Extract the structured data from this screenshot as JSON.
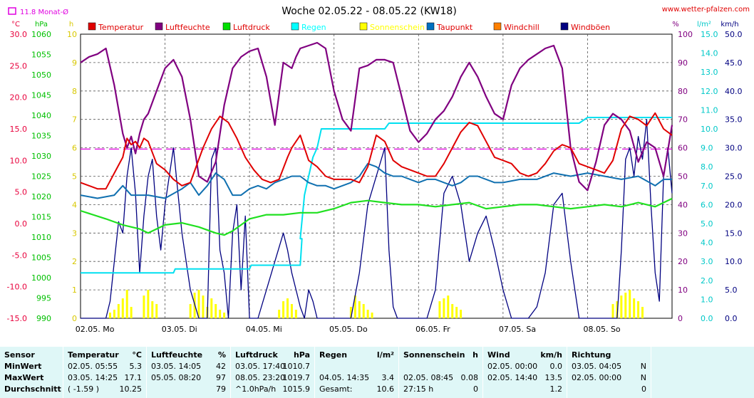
{
  "chart_data": {
    "type": "line",
    "title": "Woche 02.05.22 - 08.05.22 (KW18)",
    "source_text": "www.wetter-pfalzen.com",
    "average_note": "11.8 Monat-Ø",
    "x_tick_labels": [
      "02.05. Mo",
      "03.05. Di",
      "04.05. Mi",
      "05.05. Do",
      "06.05. Fr",
      "07.05. Sa",
      "08.05. So"
    ],
    "x_range_days": [
      0,
      7
    ],
    "axes": {
      "temperature": {
        "unit": "°C",
        "color": "#e8003c",
        "min": -15,
        "max": 30,
        "ticks": [
          "30.0",
          "25.0",
          "20.0",
          "15.0",
          "10.0",
          "5.0",
          "0.0",
          "-5.0",
          "-10.0",
          "-15.0"
        ]
      },
      "pressure": {
        "unit": "hPa",
        "color": "#00c000",
        "min": 990,
        "max": 1060,
        "ticks": [
          "1060",
          "1055",
          "1050",
          "1045",
          "1040",
          "1035",
          "1030",
          "1025",
          "1020",
          "1015",
          "1010",
          "1005",
          "1000",
          "995",
          "990"
        ]
      },
      "sunshine": {
        "unit": "h",
        "color": "#d8c800",
        "min": 0,
        "max": 10,
        "ticks": [
          "10",
          "9",
          "8",
          "7",
          "6",
          "5",
          "4",
          "3",
          "2",
          "1",
          "0"
        ]
      },
      "humidity": {
        "unit": "%",
        "color": "#800080",
        "min": 0,
        "max": 100,
        "ticks": [
          "100",
          "90",
          "80",
          "70",
          "60",
          "50",
          "40",
          "30",
          "20",
          "10",
          "0"
        ]
      },
      "rain": {
        "unit": "l/m²",
        "color": "#00c8c8",
        "min": 0,
        "max": 15,
        "ticks": [
          "15.0",
          "14.0",
          "13.0",
          "12.0",
          "11.0",
          "10.0",
          "9.0",
          "8.0",
          "7.0",
          "6.0",
          "5.0",
          "4.0",
          "3.0",
          "2.0",
          "1.0",
          "0.0"
        ]
      },
      "wind": {
        "unit": "km/h",
        "color": "#000080",
        "min": 0,
        "max": 50,
        "ticks": [
          "50.0",
          "45.0",
          "40.0",
          "35.0",
          "30.0",
          "25.0",
          "20.0",
          "15.0",
          "10.0",
          "5.0",
          "0.0"
        ]
      }
    },
    "legend": [
      {
        "name": "Temperatur",
        "color": "#e00000"
      },
      {
        "name": "Luftfeuchte",
        "color": "#800080"
      },
      {
        "name": "Luftdruck",
        "color": "#00e000"
      },
      {
        "name": "Regen",
        "color": "#00ffff"
      },
      {
        "name": "Sonnenschein",
        "color": "#ffff00"
      },
      {
        "name": "Taupunkt",
        "color": "#0070c0"
      },
      {
        "name": "Windchill",
        "color": "#ff8000"
      },
      {
        "name": "Windböen",
        "color": "#000080"
      }
    ],
    "monthly_average_temperature": 11.8,
    "series": {
      "temperature": {
        "x": [
          0,
          0.1,
          0.2,
          0.3,
          0.4,
          0.5,
          0.55,
          0.6,
          0.65,
          0.7,
          0.75,
          0.8,
          0.9,
          1.0,
          1.1,
          1.2,
          1.3,
          1.45,
          1.55,
          1.65,
          1.75,
          1.85,
          1.95,
          2.05,
          2.15,
          2.25,
          2.35,
          2.45,
          2.5,
          2.6,
          2.7,
          2.8,
          2.9,
          3.0,
          3.1,
          3.2,
          3.3,
          3.4,
          3.5,
          3.6,
          3.7,
          3.8,
          3.9,
          4.0,
          4.1,
          4.2,
          4.3,
          4.4,
          4.5,
          4.6,
          4.7,
          4.8,
          4.9,
          5.0,
          5.1,
          5.2,
          5.3,
          5.4,
          5.5,
          5.6,
          5.7,
          5.8,
          5.9,
          6.0,
          6.1,
          6.2,
          6.3,
          6.4,
          6.5,
          6.6,
          6.7,
          6.8,
          6.9,
          7.0
        ],
        "y": [
          6.5,
          6.0,
          5.5,
          5.5,
          8.0,
          10.5,
          13.5,
          12.5,
          13.0,
          12.0,
          13.5,
          13.0,
          9.5,
          8.5,
          7.0,
          6.0,
          6.5,
          12.0,
          15.0,
          17.0,
          16.0,
          13.5,
          10.5,
          8.5,
          7.0,
          6.5,
          7.0,
          10.5,
          12.0,
          14.0,
          10.0,
          9.0,
          7.5,
          7.0,
          7.0,
          7.0,
          6.5,
          9.0,
          14.0,
          13.0,
          10.0,
          9.0,
          8.5,
          8.0,
          7.5,
          7.5,
          9.5,
          12.0,
          14.5,
          16.0,
          15.5,
          13.0,
          10.5,
          10.0,
          9.5,
          8.0,
          7.5,
          8.0,
          9.5,
          11.5,
          12.5,
          12.0,
          9.5,
          9.0,
          8.5,
          8.0,
          10.0,
          15.0,
          17.0,
          16.5,
          15.5,
          17.5,
          15.0,
          14.0
        ]
      },
      "dewpoint": {
        "x": [
          0,
          0.2,
          0.4,
          0.5,
          0.6,
          0.8,
          1.0,
          1.2,
          1.3,
          1.4,
          1.5,
          1.6,
          1.7,
          1.8,
          1.9,
          2.0,
          2.1,
          2.2,
          2.3,
          2.4,
          2.5,
          2.6,
          2.7,
          2.8,
          2.9,
          3.0,
          3.1,
          3.2,
          3.3,
          3.4,
          3.5,
          3.6,
          3.7,
          3.8,
          3.9,
          4.0,
          4.1,
          4.2,
          4.3,
          4.4,
          4.5,
          4.6,
          4.7,
          4.8,
          4.9,
          5.0,
          5.2,
          5.4,
          5.6,
          5.8,
          6.0,
          6.2,
          6.4,
          6.6,
          6.8,
          6.9,
          7.0
        ],
        "y": [
          4.5,
          4.0,
          4.5,
          6.0,
          4.5,
          4.5,
          4.0,
          5.5,
          6.5,
          4.5,
          6.0,
          8.0,
          7.0,
          4.5,
          4.5,
          5.5,
          6.0,
          5.5,
          6.5,
          7.0,
          7.5,
          7.5,
          6.5,
          6.0,
          6.0,
          5.5,
          6.0,
          6.5,
          7.5,
          9.5,
          9.0,
          8.0,
          7.5,
          7.5,
          7.0,
          6.5,
          7.0,
          7.0,
          6.5,
          6.0,
          6.5,
          7.5,
          7.5,
          7.0,
          6.5,
          6.5,
          7.0,
          7.0,
          8.0,
          7.5,
          8.0,
          7.5,
          7.0,
          7.5,
          6.0,
          7.0,
          7.0
        ]
      },
      "humidity": {
        "x": [
          0,
          0.1,
          0.2,
          0.3,
          0.4,
          0.5,
          0.55,
          0.6,
          0.65,
          0.7,
          0.75,
          0.8,
          0.9,
          1.0,
          1.1,
          1.2,
          1.3,
          1.4,
          1.5,
          1.6,
          1.7,
          1.8,
          1.9,
          2.0,
          2.1,
          2.2,
          2.3,
          2.4,
          2.5,
          2.55,
          2.6,
          2.7,
          2.8,
          2.9,
          3.0,
          3.1,
          3.2,
          3.3,
          3.4,
          3.5,
          3.6,
          3.7,
          3.8,
          3.9,
          4.0,
          4.1,
          4.2,
          4.3,
          4.4,
          4.5,
          4.6,
          4.7,
          4.8,
          4.9,
          5.0,
          5.1,
          5.2,
          5.3,
          5.4,
          5.5,
          5.6,
          5.7,
          5.8,
          5.9,
          6.0,
          6.1,
          6.2,
          6.3,
          6.4,
          6.5,
          6.6,
          6.7,
          6.8,
          6.9,
          7.0
        ],
        "y": [
          90,
          92,
          93,
          95,
          82,
          65,
          60,
          64,
          58,
          65,
          70,
          72,
          80,
          88,
          91,
          85,
          70,
          50,
          48,
          55,
          75,
          88,
          92,
          94,
          95,
          85,
          68,
          90,
          88,
          92,
          95,
          96,
          97,
          95,
          80,
          70,
          66,
          88,
          89,
          91,
          91,
          90,
          78,
          66,
          62,
          65,
          70,
          73,
          78,
          85,
          90,
          85,
          78,
          72,
          70,
          82,
          88,
          91,
          93,
          95,
          96,
          88,
          60,
          48,
          45,
          55,
          68,
          72,
          70,
          66,
          55,
          62,
          60,
          50,
          68
        ]
      },
      "pressure": {
        "x": [
          0,
          0.3,
          0.5,
          0.7,
          0.8,
          1.0,
          1.2,
          1.4,
          1.6,
          1.7,
          1.8,
          2.0,
          2.2,
          2.4,
          2.6,
          2.8,
          3.0,
          3.2,
          3.4,
          3.6,
          3.8,
          4.0,
          4.2,
          4.4,
          4.6,
          4.8,
          5.0,
          5.2,
          5.4,
          5.6,
          5.8,
          6.0,
          6.2,
          6.4,
          6.6,
          6.8,
          7.0
        ],
        "y": [
          1016.5,
          1014.5,
          1013.0,
          1012.0,
          1011.0,
          1013.0,
          1013.5,
          1012.5,
          1011.0,
          1010.5,
          1011.5,
          1014.5,
          1015.5,
          1015.5,
          1016.0,
          1016.0,
          1017.0,
          1018.5,
          1019.0,
          1018.5,
          1018.0,
          1018.0,
          1017.5,
          1018.0,
          1018.5,
          1017.0,
          1017.5,
          1018.0,
          1018.0,
          1017.5,
          1017.0,
          1017.5,
          1018.0,
          1017.5,
          1018.5,
          1017.5,
          1019.5
        ]
      },
      "rain_cumulative": {
        "x": [
          0,
          1.1,
          1.12,
          2.0,
          2.02,
          2.6,
          2.62,
          2.6,
          2.65,
          2.7,
          2.75,
          2.8,
          2.85,
          2.9,
          3.0,
          3.5,
          3.6,
          3.65,
          5.5,
          5.6,
          5.9,
          6.0,
          7.0
        ],
        "y": [
          2.4,
          2.4,
          2.6,
          2.6,
          2.8,
          2.8,
          4.2,
          4.2,
          6.5,
          7.5,
          8.5,
          9.0,
          10.0,
          10.0,
          10.0,
          10.0,
          10.0,
          10.3,
          10.3,
          10.3,
          10.3,
          10.6,
          10.6
        ]
      },
      "wind_gust": {
        "x": [
          0,
          0.3,
          0.35,
          0.4,
          0.45,
          0.5,
          0.55,
          0.6,
          0.65,
          0.7,
          0.75,
          0.8,
          0.85,
          0.9,
          0.95,
          1.0,
          1.05,
          1.1,
          1.2,
          1.3,
          1.4,
          1.5,
          1.55,
          1.6,
          1.65,
          1.7,
          1.75,
          1.8,
          1.85,
          1.9,
          1.95,
          2.0,
          2.1,
          2.2,
          2.3,
          2.4,
          2.45,
          2.5,
          2.55,
          2.6,
          2.65,
          2.7,
          2.75,
          2.8,
          2.9,
          3.0,
          3.1,
          3.2,
          3.3,
          3.4,
          3.5,
          3.6,
          3.65,
          3.7,
          3.75,
          3.8,
          3.85,
          3.9,
          4.0,
          4.1,
          4.2,
          4.3,
          4.4,
          4.5,
          4.6,
          4.7,
          4.8,
          4.9,
          5.0,
          5.1,
          5.2,
          5.3,
          5.4,
          5.5,
          5.6,
          5.7,
          5.8,
          5.9,
          6.0,
          6.1,
          6.2,
          6.3,
          6.35,
          6.4,
          6.45,
          6.5,
          6.55,
          6.6,
          6.65,
          6.7,
          6.75,
          6.8,
          6.85,
          6.9,
          6.95,
          7.0
        ],
        "y": [
          0,
          0,
          3,
          10,
          17,
          15,
          25,
          30,
          22,
          8,
          18,
          25,
          28,
          18,
          12,
          20,
          25,
          30,
          15,
          5,
          0,
          0,
          28,
          30,
          12,
          8,
          0,
          15,
          20,
          5,
          18,
          0,
          0,
          5,
          10,
          15,
          12,
          8,
          5,
          2,
          0,
          5,
          3,
          0,
          0,
          0,
          0,
          0,
          8,
          20,
          25,
          30,
          12,
          2,
          0,
          0,
          0,
          0,
          0,
          0,
          5,
          22,
          25,
          20,
          10,
          15,
          18,
          12,
          5,
          0,
          0,
          0,
          2,
          8,
          20,
          22,
          10,
          0,
          0,
          0,
          0,
          0,
          0,
          12,
          28,
          30,
          25,
          32,
          28,
          35,
          20,
          8,
          3,
          25,
          30,
          22
        ]
      },
      "sunshine": {
        "bars_x": [
          0.35,
          0.4,
          0.45,
          0.5,
          0.55,
          0.6,
          0.75,
          0.8,
          0.85,
          0.9,
          1.3,
          1.35,
          1.4,
          1.45,
          1.5,
          1.55,
          1.6,
          1.65,
          1.7,
          2.35,
          2.4,
          2.45,
          2.5,
          2.55,
          3.2,
          3.25,
          3.3,
          3.35,
          3.4,
          3.45,
          4.25,
          4.3,
          4.35,
          4.4,
          4.45,
          4.5,
          6.3,
          6.35,
          6.4,
          6.45,
          6.5,
          6.55,
          6.6,
          6.65
        ],
        "bars_h": [
          0.2,
          0.3,
          0.5,
          0.7,
          1.0,
          0.4,
          0.8,
          1.0,
          0.6,
          0.5,
          0.5,
          0.9,
          1.0,
          0.8,
          0.4,
          0.7,
          0.5,
          0.3,
          0.2,
          0.3,
          0.6,
          0.7,
          0.5,
          0.3,
          0.4,
          0.8,
          0.6,
          0.5,
          0.3,
          0.2,
          0.6,
          0.7,
          0.8,
          0.5,
          0.4,
          0.3,
          0.5,
          0.6,
          0.8,
          0.9,
          1.0,
          0.7,
          0.6,
          0.4
        ]
      }
    }
  },
  "stats": {
    "headers": {
      "sensor": "Sensor",
      "temp": "Temperatur",
      "temp_unit": "°C",
      "hum": "Luftfeuchte",
      "hum_unit": "%",
      "press": "Luftdruck",
      "press_unit": "hPa",
      "rain": "Regen",
      "rain_unit": "l/m²",
      "sun": "Sonnenschein",
      "sun_unit": "h",
      "wind": "Wind",
      "wind_unit": "km/h",
      "dir": "Richtung"
    },
    "labels": [
      "MinWert",
      "MaxWert",
      "Durchschnitt"
    ],
    "temp": [
      [
        "02.05.  05:55",
        "5.3"
      ],
      [
        "03.05.  14:25",
        "17.1"
      ],
      [
        "( -1.59 )",
        "10.25"
      ]
    ],
    "hum": [
      [
        "03.05.  14:05",
        "42"
      ],
      [
        "05.05.  08:20",
        "97"
      ],
      [
        "",
        "79"
      ]
    ],
    "press": [
      [
        "03.05.  17:40",
        "1010.7"
      ],
      [
        "08.05.  23:20",
        "1019.7"
      ],
      [
        "^1.0hPa/h",
        "1015.9"
      ]
    ],
    "rain": [
      [
        "",
        ""
      ],
      [
        "04.05.  14:35",
        "3.4"
      ],
      [
        "Gesamt:",
        "10.6"
      ]
    ],
    "sun": [
      [
        "",
        ""
      ],
      [
        "02.05.  08:45",
        "0.08"
      ],
      [
        "27:15 h",
        "0"
      ]
    ],
    "wind": [
      [
        "02.05.  00:00",
        "0.0"
      ],
      [
        "02.05.  14:40",
        "13.5"
      ],
      [
        "",
        "1.2"
      ]
    ],
    "dir": [
      [
        "03.05.  04:05",
        "N"
      ],
      [
        "02.05.  00:00",
        "N"
      ],
      [
        "",
        "0"
      ]
    ]
  }
}
